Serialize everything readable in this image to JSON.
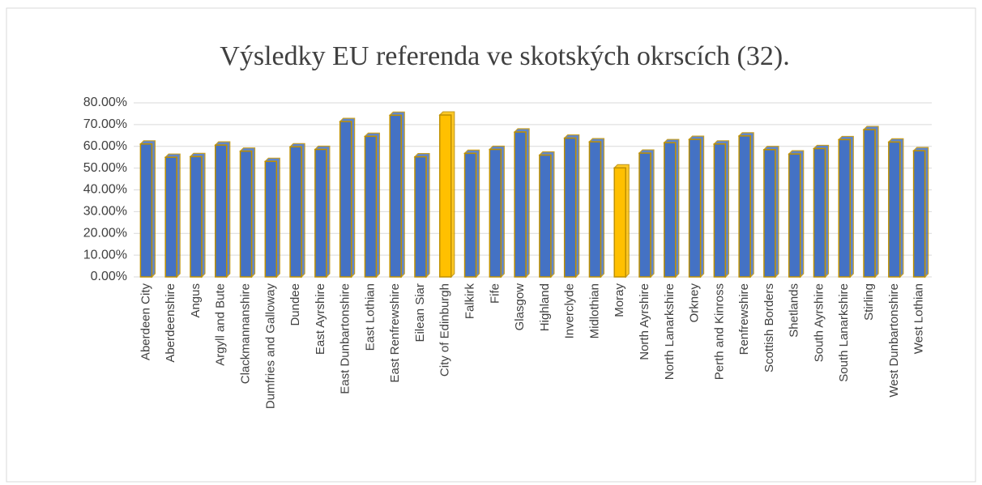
{
  "chart_data": {
    "type": "bar",
    "title": "Výsledky EU referenda ve skotských okrscích (32).",
    "categories": [
      "Aberdeen City",
      "Aberdeenshire",
      "Angus",
      "Argyll and Bute",
      "Clackmannanshire",
      "Dumfries and Galloway",
      "Dundee",
      "East Ayrshire",
      "East Dunbartonshire",
      "East Lothian",
      "East Renfrewshire",
      "Eilean Siar",
      "City of Edinburgh",
      "Falkirk",
      "Fife",
      "Glasgow",
      "Highland",
      "Inverclyde",
      "Midlothian",
      "Moray",
      "North Ayrshire",
      "North Lanarkshire",
      "Orkney",
      "Perth and Kinross",
      "Renfrewshire",
      "Scottish Borders",
      "Shetlands",
      "South Ayrshire",
      "South Lanarkshire",
      "Stirling",
      "West Dunbartonshire",
      "West Lothian"
    ],
    "values": [
      61.1,
      55.0,
      55.3,
      60.6,
      57.8,
      53.1,
      59.8,
      58.6,
      71.4,
      64.6,
      74.3,
      55.2,
      74.4,
      56.8,
      58.6,
      66.6,
      56.0,
      63.8,
      62.1,
      50.1,
      56.9,
      61.7,
      63.2,
      61.1,
      64.8,
      58.5,
      56.5,
      59.0,
      63.1,
      67.7,
      62.0,
      58.0
    ],
    "colors": [
      "#4472c4",
      "#4472c4",
      "#4472c4",
      "#4472c4",
      "#4472c4",
      "#4472c4",
      "#4472c4",
      "#4472c4",
      "#4472c4",
      "#4472c4",
      "#4472c4",
      "#4472c4",
      "#ffc000",
      "#4472c4",
      "#4472c4",
      "#4472c4",
      "#4472c4",
      "#4472c4",
      "#4472c4",
      "#ffc000",
      "#4472c4",
      "#4472c4",
      "#4472c4",
      "#4472c4",
      "#4472c4",
      "#4472c4",
      "#4472c4",
      "#4472c4",
      "#4472c4",
      "#4472c4",
      "#4472c4",
      "#4472c4"
    ],
    "ylim": [
      0,
      80
    ],
    "yticks": [
      {
        "value": 0,
        "label": "0.00%"
      },
      {
        "value": 10,
        "label": "10.00%"
      },
      {
        "value": 20,
        "label": "20.00%"
      },
      {
        "value": 30,
        "label": "30.00%"
      },
      {
        "value": 40,
        "label": "40.00%"
      },
      {
        "value": 50,
        "label": "50.00%"
      },
      {
        "value": 60,
        "label": "60.00%"
      },
      {
        "value": 70,
        "label": "70.00%"
      },
      {
        "value": 80,
        "label": "80.00%"
      }
    ],
    "grid": true
  }
}
